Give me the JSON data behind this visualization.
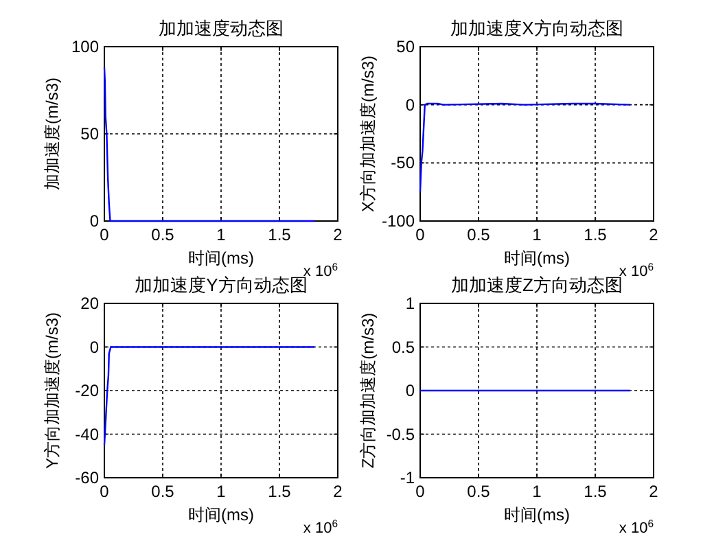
{
  "chart_data": [
    {
      "type": "line",
      "title": "加加速度动态图",
      "xlabel": "时间(ms)",
      "ylabel": "加加速度(m/s3)",
      "annotations": [
        "x 10$^{6}$"
      ],
      "series": [
        {
          "color": "#0000ff",
          "x": [
            0,
            0.005,
            0.01,
            0.02,
            0.03,
            0.04,
            0.05,
            1.8
          ],
          "values": [
            88,
            80,
            60,
            50,
            25,
            10,
            0,
            0
          ]
        }
      ],
      "xlim": [
        0,
        2
      ],
      "xticks": [
        0,
        0.5,
        1,
        1.5,
        2
      ],
      "ylim": [
        0,
        100
      ],
      "yticks": [
        0,
        50,
        100
      ],
      "grid": true
    },
    {
      "type": "line",
      "title": "加加速度X方向动态图",
      "xlabel": "时间(ms)",
      "ylabel": "X方向加加速度(m/s3)",
      "annotations": [
        "x 10$^{6}$"
      ],
      "series": [
        {
          "color": "#0000ff",
          "x": [
            0,
            0.01,
            0.02,
            0.04,
            0.06,
            0.15,
            0.2,
            0.7,
            0.9,
            1.3,
            1.5,
            1.8
          ],
          "values": [
            -75,
            -50,
            -40,
            0,
            1,
            1,
            0,
            1,
            0,
            1,
            1,
            0
          ]
        }
      ],
      "xlim": [
        0,
        2
      ],
      "xticks": [
        0,
        0.5,
        1,
        1.5,
        2
      ],
      "ylim": [
        -100,
        50
      ],
      "yticks": [
        -100,
        -50,
        0,
        50
      ],
      "grid": true
    },
    {
      "type": "line",
      "title": "加加速度Y方向动态图",
      "xlabel": "时间(ms)",
      "ylabel": "Y方向加加速度(m/s3)",
      "annotations": [
        "x 10$^{6}$"
      ],
      "series": [
        {
          "color": "#0000ff",
          "x": [
            0,
            0.005,
            0.015,
            0.025,
            0.035,
            0.04,
            0.055,
            1.8
          ],
          "values": [
            -45,
            -40,
            -30,
            -20,
            -13,
            -3,
            0,
            0
          ]
        }
      ],
      "xlim": [
        0,
        2
      ],
      "xticks": [
        0,
        0.5,
        1,
        1.5,
        2
      ],
      "ylim": [
        -60,
        20
      ],
      "yticks": [
        -60,
        -40,
        -20,
        0,
        20
      ],
      "grid": true
    },
    {
      "type": "line",
      "title": "加加速度Z方向动态图",
      "xlabel": "时间(ms)",
      "ylabel": "Z方向加加速度(m/s3)",
      "annotations": [
        "x 10$^{6}$"
      ],
      "series": [
        {
          "color": "#0000ff",
          "x": [
            0,
            1.8
          ],
          "values": [
            0,
            0
          ]
        }
      ],
      "xlim": [
        0,
        2
      ],
      "xticks": [
        0,
        0.5,
        1,
        1.5,
        2
      ],
      "ylim": [
        -1,
        1
      ],
      "yticks": [
        -1,
        -0.5,
        0,
        0.5,
        1
      ],
      "grid": true
    }
  ]
}
